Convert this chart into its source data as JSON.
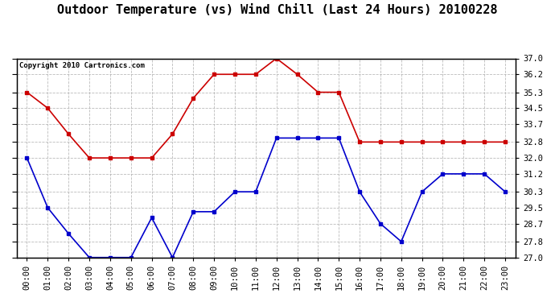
{
  "title": "Outdoor Temperature (vs) Wind Chill (Last 24 Hours) 20100228",
  "copyright": "Copyright 2010 Cartronics.com",
  "hours": [
    "00:00",
    "01:00",
    "02:00",
    "03:00",
    "04:00",
    "05:00",
    "06:00",
    "07:00",
    "08:00",
    "09:00",
    "10:00",
    "11:00",
    "12:00",
    "13:00",
    "14:00",
    "15:00",
    "16:00",
    "17:00",
    "18:00",
    "19:00",
    "20:00",
    "21:00",
    "22:00",
    "23:00"
  ],
  "red_data": [
    35.3,
    34.5,
    33.2,
    32.0,
    32.0,
    32.0,
    32.0,
    33.2,
    35.0,
    36.2,
    36.2,
    36.2,
    37.0,
    36.2,
    35.3,
    35.3,
    32.8,
    32.8,
    32.8,
    32.8,
    32.8,
    32.8,
    32.8,
    32.8
  ],
  "blue_data": [
    32.0,
    29.5,
    28.2,
    27.0,
    27.0,
    27.0,
    29.0,
    27.0,
    29.3,
    29.3,
    30.3,
    30.3,
    33.0,
    33.0,
    33.0,
    33.0,
    30.3,
    28.7,
    27.8,
    30.3,
    31.2,
    31.2,
    31.2,
    30.3
  ],
  "red_color": "#cc0000",
  "blue_color": "#0000cc",
  "bg_color": "#ffffff",
  "plot_bg_color": "#ffffff",
  "grid_color": "#aaaaaa",
  "ylim_min": 27.0,
  "ylim_max": 37.0,
  "yticks": [
    27.0,
    27.8,
    28.7,
    29.5,
    30.3,
    31.2,
    32.0,
    32.8,
    33.7,
    34.5,
    35.3,
    36.2,
    37.0
  ],
  "marker": "s",
  "marker_size": 3,
  "linewidth": 1.2,
  "title_fontsize": 11,
  "tick_fontsize": 7.5,
  "copyright_fontsize": 6.5
}
